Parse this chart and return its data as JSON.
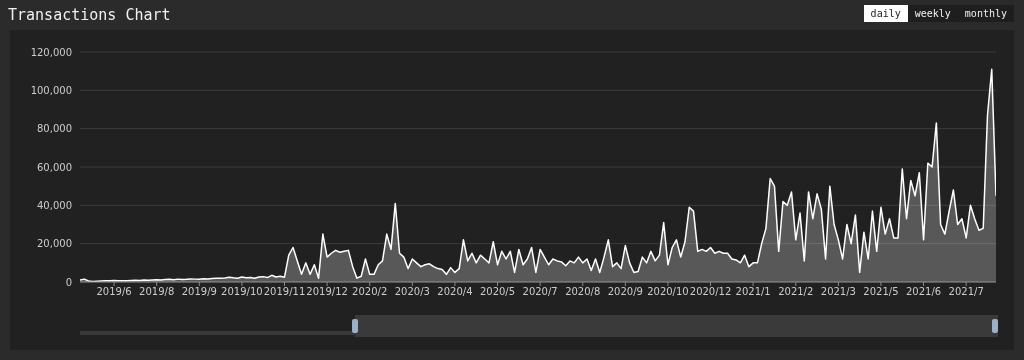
{
  "chart_data": {
    "type": "area",
    "title": "Transactions Chart",
    "annotations": [
      "daily",
      "weekly",
      "monthly"
    ],
    "categories": [
      null,
      null,
      null,
      null,
      null,
      null,
      null,
      null,
      "2019/6",
      null,
      null,
      null,
      null,
      null,
      null,
      null,
      null,
      null,
      "2019/8",
      null,
      null,
      null,
      null,
      null,
      null,
      null,
      null,
      null,
      "2019/9",
      null,
      null,
      null,
      null,
      null,
      null,
      null,
      null,
      null,
      "2019/10",
      null,
      null,
      null,
      null,
      null,
      null,
      null,
      null,
      null,
      "2019/11",
      null,
      null,
      null,
      null,
      null,
      null,
      null,
      null,
      null,
      "2019/12",
      null,
      null,
      null,
      null,
      null,
      null,
      null,
      null,
      null,
      "2020/2",
      null,
      null,
      null,
      null,
      null,
      null,
      null,
      null,
      null,
      "2020/3",
      null,
      null,
      null,
      null,
      null,
      null,
      null,
      null,
      null,
      "2020/4",
      null,
      null,
      null,
      null,
      null,
      null,
      null,
      null,
      null,
      "2020/5",
      null,
      null,
      null,
      null,
      null,
      null,
      null,
      null,
      null,
      "2020/7",
      null,
      null,
      null,
      null,
      null,
      null,
      null,
      null,
      null,
      "2020/8",
      null,
      null,
      null,
      null,
      null,
      null,
      null,
      null,
      null,
      "2020/9",
      null,
      null,
      null,
      null,
      null,
      null,
      null,
      null,
      null,
      "2020/10",
      null,
      null,
      null,
      null,
      null,
      null,
      null,
      null,
      null,
      "2020/12",
      null,
      null,
      null,
      null,
      null,
      null,
      null,
      null,
      null,
      "2021/1",
      null,
      null,
      null,
      null,
      null,
      null,
      null,
      null,
      null,
      "2021/2",
      null,
      null,
      null,
      null,
      null,
      null,
      null,
      null,
      null,
      "2021/3",
      null,
      null,
      null,
      null,
      null,
      null,
      null,
      null,
      null,
      "2021/5",
      null,
      null,
      null,
      null,
      null,
      null,
      null,
      null,
      null,
      "2021/6",
      null,
      null,
      null,
      null,
      null,
      null,
      null,
      null,
      null,
      "2021/7",
      null,
      null,
      null,
      null,
      null,
      null,
      null
    ],
    "series": [
      {
        "color": "#ffffff",
        "values": [
          1000,
          1500,
          500,
          300,
          400,
          500,
          600,
          700,
          800,
          600,
          700,
          600,
          800,
          900,
          800,
          1000,
          900,
          1100,
          1200,
          1000,
          1300,
          1400,
          1200,
          1500,
          1300,
          1400,
          1600,
          1500,
          1400,
          1700,
          1600,
          1800,
          2000,
          1900,
          2100,
          2500,
          2200,
          2000,
          2600,
          2200,
          2400,
          2000,
          2600,
          2800,
          2300,
          3500,
          2600,
          3000,
          2500,
          14000,
          18000,
          11000,
          4000,
          10000,
          4000,
          9000,
          2000,
          25000,
          13000,
          15000,
          16500,
          15500,
          16000,
          16500,
          8000,
          2000,
          3000,
          12000,
          4000,
          4000,
          9000,
          11000,
          25000,
          17000,
          41000,
          15000,
          13000,
          7000,
          12000,
          10000,
          8000,
          9000,
          9500,
          8000,
          7000,
          6500,
          4000,
          7500,
          5000,
          7000,
          22000,
          11000,
          15000,
          10000,
          14000,
          12000,
          10000,
          21000,
          9000,
          16000,
          12000,
          16000,
          5000,
          17000,
          9000,
          12000,
          18000,
          5000,
          17000,
          13000,
          9000,
          12000,
          11000,
          10500,
          8500,
          11000,
          10000,
          13000,
          10000,
          12000,
          6000,
          12000,
          5000,
          13000,
          22000,
          8000,
          10000,
          7000,
          19000,
          10000,
          5000,
          5500,
          13000,
          10000,
          16000,
          11000,
          14000,
          31000,
          9000,
          18000,
          22000,
          13000,
          21000,
          39000,
          37000,
          16000,
          17000,
          16000,
          18000,
          15000,
          16000,
          15000,
          15000,
          12000,
          11500,
          10000,
          14000,
          8000,
          10000,
          10000,
          20000,
          28000,
          54000,
          50000,
          16000,
          42000,
          40000,
          47000,
          22000,
          36000,
          11000,
          47000,
          33000,
          46000,
          38000,
          12000,
          50000,
          30000,
          22000,
          12000,
          30000,
          20000,
          35000,
          5000,
          26000,
          12000,
          37000,
          16000,
          39000,
          25000,
          33000,
          23000,
          23000,
          59000,
          33000,
          53000,
          45000,
          57000,
          22000,
          62000,
          60000,
          83000,
          30000,
          25000,
          37000,
          48000,
          30000,
          33000,
          23000,
          40000,
          33000,
          27000,
          28000,
          87000,
          111000,
          45000
        ]
      }
    ],
    "ylim": [
      0,
      120000
    ],
    "yticks": [
      0,
      {
        "value": 20000,
        "label": "20,000"
      },
      {
        "value": 40000,
        "label": "40,000"
      },
      {
        "value": 60000,
        "label": "60,000"
      },
      {
        "value": 80000,
        "label": "80,000"
      },
      {
        "value": 100000,
        "label": "100,000"
      },
      {
        "value": 120000,
        "label": "120,000"
      }
    ],
    "grid": "y",
    "legend": false
  }
}
